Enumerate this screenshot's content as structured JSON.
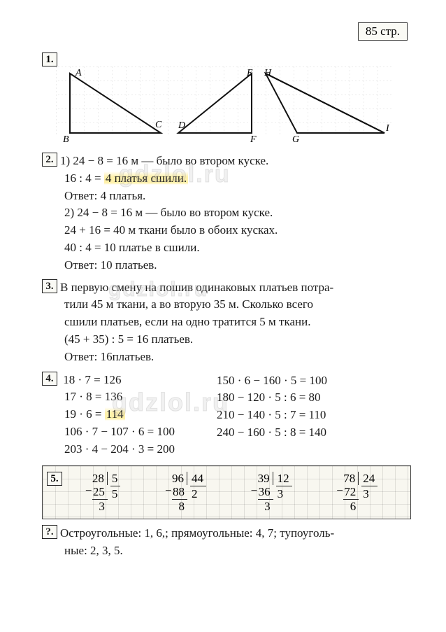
{
  "page_label": "85 стр.",
  "watermark_text": "gdzlol.ru",
  "tasks": {
    "t1": {
      "num": "1.",
      "labels": [
        "A",
        "B",
        "C",
        "D",
        "E",
        "H",
        "F",
        "G",
        "I"
      ]
    },
    "t2": {
      "num": "2.",
      "lines": [
        "1) 24 − 8 = 16 м — было во втором куске.",
        "16 : 4 = 4 платья сшили.",
        "Ответ: 4 платья.",
        "2) 24 − 8 = 16 м — было во втором куске.",
        "24 + 16 = 40 м ткани было в обоих кусках.",
        "40 : 4 = 10 платье в сшили.",
        "Ответ: 10 платьев."
      ],
      "highlight": "4 платья сшили."
    },
    "t3": {
      "num": "3.",
      "lines": [
        "В первую смену на пошив одинаковых платьев потра-",
        "тили 45 м ткани, а во вторую 35 м. Сколько всего",
        "сшили платьев, если на одно тратится 5 м ткани.",
        "(45 + 35) : 5 = 16 платьев.",
        "Ответ: 16платьев."
      ]
    },
    "t4": {
      "num": "4.",
      "left": [
        "18 · 7 = 126",
        "17 · 8 = 136",
        "19 · 6 = 114",
        "106 · 7 − 107 · 6 = 100",
        "203 · 4 − 204 · 3 = 200"
      ],
      "right": [
        "150 · 6 − 160 · 5 = 100",
        "180 − 120 · 5 : 6 = 80",
        "210 − 140 · 5 : 7 = 110",
        "240 − 160 · 5 : 8 = 140"
      ],
      "highlight": "114"
    },
    "t5": {
      "num": "5.",
      "divisions": [
        {
          "dividend": "28",
          "divisor": "5",
          "quotient": "5",
          "sub": "25",
          "rem": "3"
        },
        {
          "dividend": "96",
          "divisor": "44",
          "quotient": "2",
          "sub": "88",
          "rem": "8"
        },
        {
          "dividend": "39",
          "divisor": "12",
          "quotient": "3",
          "sub": "36",
          "rem": "3"
        },
        {
          "dividend": "78",
          "divisor": "24",
          "quotient": "3",
          "sub": "72",
          "rem": "6"
        }
      ]
    },
    "tq": {
      "num": "?.",
      "lines": [
        "Остроугольные: 1, 6,; прямоугольные: 4, 7; тупоуголь-",
        "ные: 2, 3, 5."
      ]
    }
  },
  "colors": {
    "text": "#1a1a1a",
    "border": "#333333",
    "highlight": "rgba(255,230,100,0.55)",
    "grid": "rgba(0,0,0,0.12)"
  }
}
